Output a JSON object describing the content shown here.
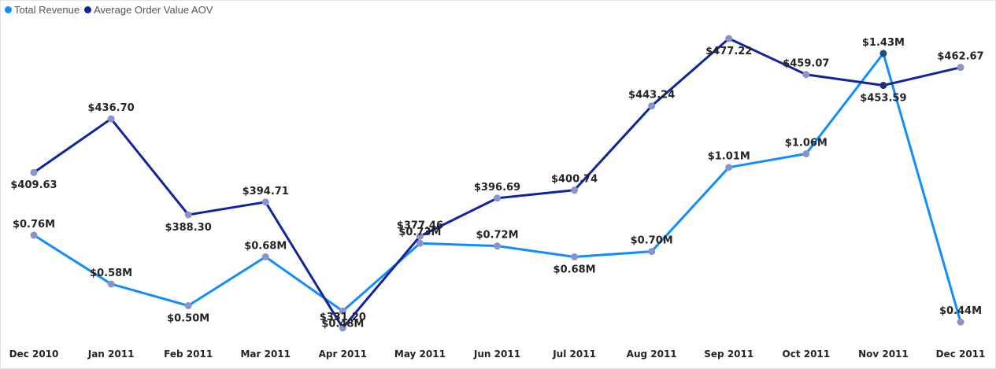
{
  "legend": {
    "items": [
      {
        "label": "Total Revenue",
        "color": "#118DFF"
      },
      {
        "label": "Average Order Value AOV",
        "color": "#12239E"
      }
    ]
  },
  "chart_data": {
    "type": "line",
    "title": "",
    "xlabel": "",
    "ylabel": "",
    "categories": [
      "Dec 2010",
      "Jan 2011",
      "Feb 2011",
      "Mar 2011",
      "Apr 2011",
      "May 2011",
      "Jun 2011",
      "Jul 2011",
      "Aug 2011",
      "Sep 2011",
      "Oct 2011",
      "Nov 2011",
      "Dec 2011"
    ],
    "legend_position": "top-left",
    "grid": false,
    "series": [
      {
        "name": "Total Revenue",
        "color": "#118DFF",
        "values": [
          0.76,
          0.58,
          0.5,
          0.68,
          0.48,
          0.73,
          0.72,
          0.68,
          0.7,
          1.01,
          1.06,
          1.43,
          0.44
        ],
        "labels": [
          "$0.76M",
          "$0.58M",
          "$0.50M",
          "$0.68M",
          "$0.48M",
          "$0.73M",
          "$0.72M",
          "$0.68M",
          "$0.70M",
          "$1.01M",
          "$1.06M",
          "$1.43M",
          "$0.44M"
        ],
        "ylim": [
          0.4,
          1.45
        ]
      },
      {
        "name": "Average Order Value AOV",
        "color": "#12239E",
        "values": [
          409.63,
          436.7,
          388.3,
          394.71,
          331.2,
          377.46,
          396.69,
          400.74,
          443.24,
          477.22,
          459.07,
          453.59,
          462.67
        ],
        "labels": [
          "$409.63",
          "$436.70",
          "$388.30",
          "$394.71",
          "$331.20",
          "$377.46",
          "$396.69",
          "$400.74",
          "$443.24",
          "$477.22",
          "$459.07",
          "$453.59",
          "$462.67"
        ],
        "ylim": [
          320,
          480
        ]
      }
    ],
    "marker_color": "#8B93C9"
  }
}
